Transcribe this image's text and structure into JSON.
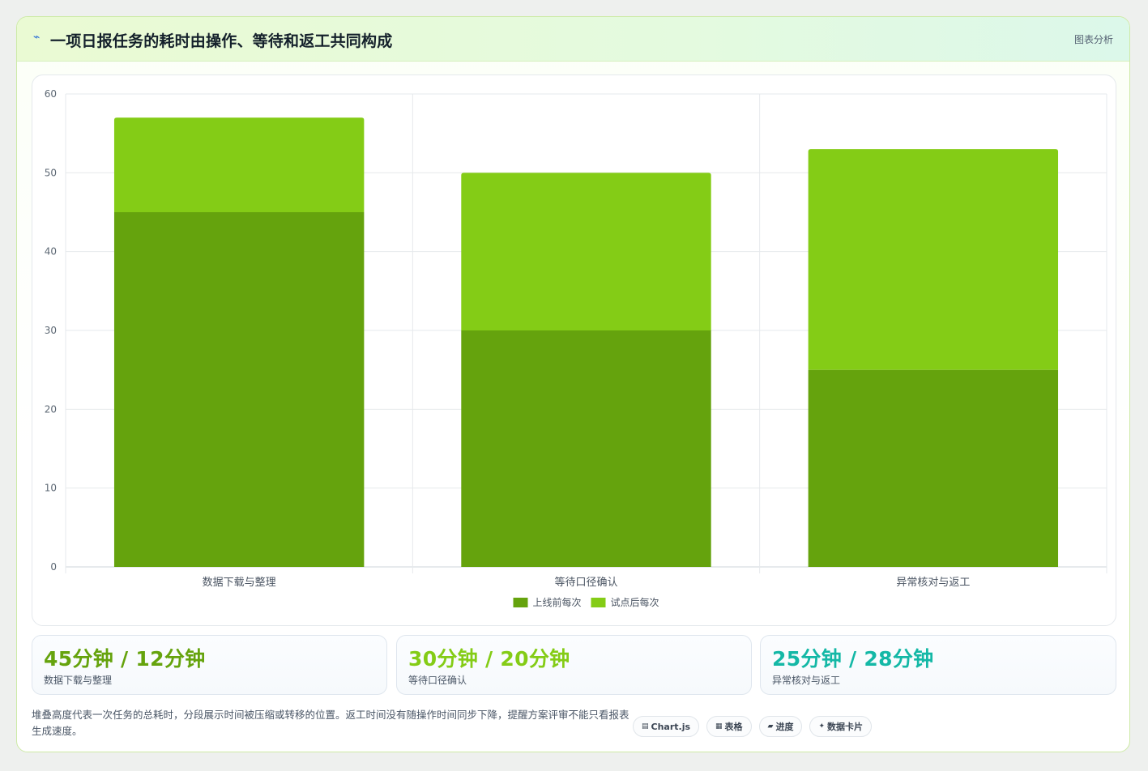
{
  "header": {
    "title": "一项日报任务的耗时由操作、等待和返工共同构成",
    "tag": "图表分析"
  },
  "chart_data": {
    "type": "bar",
    "stacked": true,
    "categories": [
      "数据下载与整理",
      "等待口径确认",
      "异常核对与返工"
    ],
    "series": [
      {
        "name": "上线前每次",
        "values": [
          45,
          30,
          25
        ],
        "color": "#65a30d"
      },
      {
        "name": "试点后每次",
        "values": [
          12,
          20,
          28
        ],
        "color": "#84cc16"
      }
    ],
    "ylim": [
      0,
      60
    ],
    "yticks": [
      0,
      10,
      20,
      30,
      40,
      50,
      60
    ],
    "grid": true,
    "legend_position": "bottom"
  },
  "kpis": [
    {
      "value": "45分钟 / 12分钟",
      "label": "数据下载与整理",
      "color": "#65a30d"
    },
    {
      "value": "30分钟 / 20分钟",
      "label": "等待口径确认",
      "color": "#84cc16"
    },
    {
      "value": "25分钟 / 28分钟",
      "label": "异常核对与返工",
      "color": "#14b8a6"
    }
  ],
  "note": "堆叠高度代表一次任务的总耗时，分段展示时间被压缩或转移的位置。返工时间没有随操作时间同步下降，提醒方案评审不能只看报表生成速度。",
  "chips": [
    {
      "icon": "chart-icon",
      "glyph": "▤",
      "label": "Chart.js"
    },
    {
      "icon": "table-icon",
      "glyph": "▦",
      "label": "表格"
    },
    {
      "icon": "progress-icon",
      "glyph": "▰",
      "label": "进度"
    },
    {
      "icon": "sparkle-icon",
      "glyph": "✦",
      "label": "数据卡片"
    }
  ]
}
